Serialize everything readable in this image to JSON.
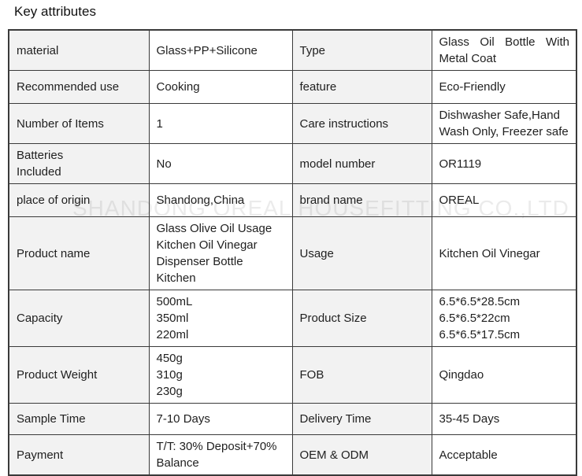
{
  "page": {
    "title": "Key attributes",
    "watermark": "SHANDONG OREAL HOUSEFITTING CO.,LTD"
  },
  "colors": {
    "label_bg": "#f2f2f2",
    "border": "#3a3a3a",
    "text": "#1f1f1f",
    "watermark": "rgba(60,60,60,0.10)"
  },
  "table": {
    "rows": [
      [
        "material",
        "Glass+PP+Silicone",
        "Type",
        "Glass Oil Bottle With Metal Coat"
      ],
      [
        "Recommended use",
        "Cooking",
        "feature",
        "Eco-Friendly"
      ],
      [
        "Number of Items",
        "1",
        "Care instructions",
        "Dishwasher Safe,Hand\nWash Only, Freezer safe"
      ],
      [
        "Batteries\nIncluded",
        "No",
        "model number",
        "OR1119"
      ],
      [
        "place of origin",
        "Shandong,China",
        "brand name",
        "OREAL"
      ],
      [
        "Product name",
        "Glass Olive Oil Usage\nKitchen Oil Vinegar\nDispenser Bottle Kitchen",
        "Usage",
        "Kitchen Oil Vinegar"
      ],
      [
        "Capacity",
        "500mL\n350ml\n220ml",
        "Product Size",
        "6.5*6.5*28.5cm\n6.5*6.5*22cm\n6.5*6.5*17.5cm"
      ],
      [
        "Product Weight",
        "450g\n310g\n230g",
        "FOB",
        "Qingdao"
      ],
      [
        "Sample Time",
        "7-10 Days",
        "Delivery Time",
        "35-45 Days"
      ],
      [
        "Payment",
        "T/T: 30% Deposit+70%\nBalance",
        "OEM & ODM",
        "Acceptable"
      ]
    ]
  }
}
